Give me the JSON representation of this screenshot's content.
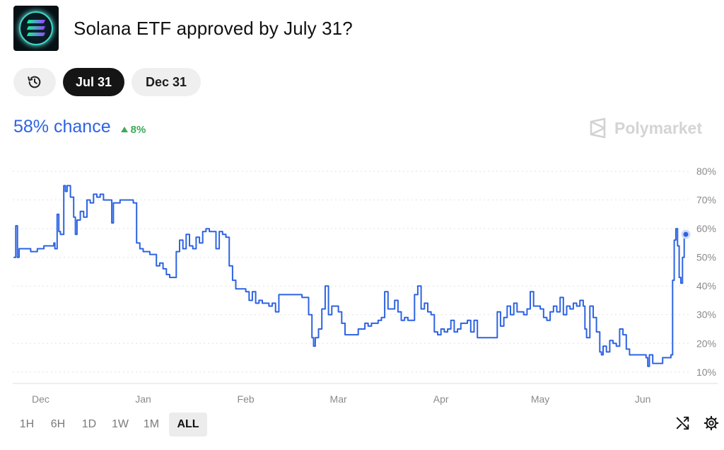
{
  "header": {
    "title": "Solana ETF approved by July 31?"
  },
  "icons": {
    "logo": "solana-logo-icon",
    "history": "history-icon",
    "shuffle": "shuffle-icon",
    "settings": "gear-icon"
  },
  "date_tabs": {
    "first": "Jul 31",
    "second": "Dec 31"
  },
  "summary": {
    "chance": "58% chance",
    "delta": "8%"
  },
  "brand": {
    "name": "Polymarket"
  },
  "colors": {
    "line": "#2d63e2",
    "up": "#3daa5a"
  },
  "ranges": [
    {
      "label": "1H",
      "active": false
    },
    {
      "label": "6H",
      "active": false
    },
    {
      "label": "1D",
      "active": false
    },
    {
      "label": "1W",
      "active": false
    },
    {
      "label": "1M",
      "active": false
    },
    {
      "label": "ALL",
      "active": true
    }
  ],
  "chart_data": {
    "type": "line",
    "x_unit": "days",
    "x_tick_labels": [
      {
        "label": "Dec",
        "x": 0
      },
      {
        "label": "Jan",
        "x": 31
      },
      {
        "label": "Feb",
        "x": 62
      },
      {
        "label": "Mar",
        "x": 90
      },
      {
        "label": "Apr",
        "x": 121
      },
      {
        "label": "May",
        "x": 151
      },
      {
        "label": "Jun",
        "x": 182
      }
    ],
    "y_ticks": [
      "10%",
      "20%",
      "30%",
      "40%",
      "50%",
      "60%",
      "70%",
      "80%"
    ],
    "ylim": [
      6,
      82
    ],
    "xlim": [
      -8,
      195
    ],
    "grid": true,
    "series": [
      {
        "points": [
          [
            -8,
            50
          ],
          [
            -7.5,
            61
          ],
          [
            -7,
            50
          ],
          [
            -6.5,
            53
          ],
          [
            -5,
            53
          ],
          [
            -3,
            52
          ],
          [
            -1,
            53
          ],
          [
            1,
            54
          ],
          [
            3,
            54
          ],
          [
            4,
            55
          ],
          [
            4.3,
            53
          ],
          [
            5,
            65
          ],
          [
            5.5,
            59
          ],
          [
            6,
            58
          ],
          [
            7,
            75
          ],
          [
            7.5,
            73
          ],
          [
            8,
            75
          ],
          [
            9,
            71
          ],
          [
            10,
            64
          ],
          [
            10.5,
            58
          ],
          [
            11,
            63
          ],
          [
            12,
            66
          ],
          [
            13,
            64
          ],
          [
            14,
            70
          ],
          [
            15,
            69
          ],
          [
            16,
            72
          ],
          [
            17,
            71
          ],
          [
            18,
            72
          ],
          [
            19,
            70
          ],
          [
            20,
            70
          ],
          [
            21,
            70
          ],
          [
            21.5,
            62
          ],
          [
            22,
            69
          ],
          [
            23,
            69
          ],
          [
            24,
            70
          ],
          [
            25,
            70
          ],
          [
            26,
            70
          ],
          [
            27,
            70
          ],
          [
            28,
            69
          ],
          [
            29,
            55
          ],
          [
            30,
            53
          ],
          [
            31,
            52
          ],
          [
            32,
            52
          ],
          [
            33,
            51
          ],
          [
            34,
            51
          ],
          [
            35,
            47
          ],
          [
            36,
            48
          ],
          [
            37,
            46
          ],
          [
            38,
            44
          ],
          [
            39,
            43
          ],
          [
            40,
            43
          ],
          [
            41,
            52
          ],
          [
            42,
            56
          ],
          [
            43,
            53
          ],
          [
            44,
            58
          ],
          [
            45,
            54
          ],
          [
            46,
            53
          ],
          [
            47,
            57
          ],
          [
            48,
            55
          ],
          [
            49,
            59
          ],
          [
            50,
            60
          ],
          [
            51,
            59
          ],
          [
            52,
            59
          ],
          [
            53,
            53
          ],
          [
            54,
            59
          ],
          [
            55,
            58
          ],
          [
            56,
            57
          ],
          [
            57,
            47
          ],
          [
            58,
            42
          ],
          [
            59,
            39
          ],
          [
            60,
            39
          ],
          [
            61,
            39
          ],
          [
            62,
            38
          ],
          [
            63,
            35
          ],
          [
            64,
            38
          ],
          [
            65,
            34
          ],
          [
            66,
            35
          ],
          [
            67,
            34
          ],
          [
            68,
            34
          ],
          [
            69,
            33
          ],
          [
            70,
            34
          ],
          [
            71,
            31
          ],
          [
            72,
            37
          ],
          [
            73,
            37
          ],
          [
            74,
            37
          ],
          [
            75,
            37
          ],
          [
            76,
            37
          ],
          [
            77,
            37
          ],
          [
            78,
            37
          ],
          [
            79,
            36
          ],
          [
            80,
            36
          ],
          [
            81,
            30
          ],
          [
            82,
            22
          ],
          [
            82.5,
            19
          ],
          [
            83,
            22
          ],
          [
            84,
            25
          ],
          [
            85,
            32
          ],
          [
            86,
            40
          ],
          [
            87,
            30
          ],
          [
            88,
            33
          ],
          [
            89,
            33
          ],
          [
            90,
            31
          ],
          [
            91,
            27
          ],
          [
            92,
            23
          ],
          [
            93,
            23
          ],
          [
            94,
            23
          ],
          [
            95,
            23
          ],
          [
            96,
            25
          ],
          [
            97,
            25
          ],
          [
            98,
            27
          ],
          [
            99,
            26
          ],
          [
            100,
            27
          ],
          [
            101,
            27
          ],
          [
            102,
            28
          ],
          [
            103,
            29
          ],
          [
            104,
            38
          ],
          [
            105,
            32
          ],
          [
            106,
            32
          ],
          [
            107,
            35
          ],
          [
            108,
            31
          ],
          [
            109,
            28
          ],
          [
            110,
            29
          ],
          [
            111,
            28
          ],
          [
            112,
            28
          ],
          [
            113,
            37
          ],
          [
            114,
            40
          ],
          [
            115,
            32
          ],
          [
            116,
            34
          ],
          [
            117,
            31
          ],
          [
            118,
            30
          ],
          [
            119,
            24
          ],
          [
            120,
            23
          ],
          [
            121,
            25
          ],
          [
            122,
            24
          ],
          [
            123,
            25
          ],
          [
            124,
            28
          ],
          [
            125,
            24
          ],
          [
            126,
            25
          ],
          [
            127,
            27
          ],
          [
            128,
            27
          ],
          [
            129,
            28
          ],
          [
            130,
            24
          ],
          [
            131,
            28
          ],
          [
            132,
            22
          ],
          [
            133,
            22
          ],
          [
            134,
            22
          ],
          [
            135,
            22
          ],
          [
            136,
            22
          ],
          [
            137,
            22
          ],
          [
            138,
            31
          ],
          [
            139,
            26
          ],
          [
            140,
            29
          ],
          [
            141,
            33
          ],
          [
            142,
            30
          ],
          [
            143,
            34
          ],
          [
            144,
            31
          ],
          [
            145,
            31
          ],
          [
            146,
            30
          ],
          [
            147,
            32
          ],
          [
            148,
            38
          ],
          [
            149,
            33
          ],
          [
            150,
            33
          ],
          [
            151,
            32
          ],
          [
            152,
            29
          ],
          [
            153,
            28
          ],
          [
            154,
            31
          ],
          [
            155,
            33
          ],
          [
            156,
            31
          ],
          [
            157,
            36
          ],
          [
            158,
            30
          ],
          [
            159,
            33
          ],
          [
            160,
            32
          ],
          [
            161,
            34
          ],
          [
            162,
            33
          ],
          [
            163,
            35
          ],
          [
            164,
            33
          ],
          [
            164.5,
            25
          ],
          [
            165,
            22
          ],
          [
            166,
            33
          ],
          [
            167,
            29
          ],
          [
            168,
            24
          ],
          [
            169,
            17
          ],
          [
            169.5,
            16
          ],
          [
            170,
            19
          ],
          [
            171,
            17
          ],
          [
            172,
            21
          ],
          [
            173,
            20
          ],
          [
            174,
            19
          ],
          [
            175,
            25
          ],
          [
            176,
            23
          ],
          [
            177,
            18
          ],
          [
            178,
            16
          ],
          [
            179,
            16
          ],
          [
            180,
            16
          ],
          [
            181,
            16
          ],
          [
            182,
            16
          ],
          [
            183,
            15
          ],
          [
            183.5,
            12
          ],
          [
            184,
            16
          ],
          [
            185,
            13
          ],
          [
            186,
            13
          ],
          [
            187,
            13
          ],
          [
            188,
            15
          ],
          [
            189,
            15
          ],
          [
            190,
            15
          ],
          [
            190.5,
            16
          ],
          [
            191,
            42
          ],
          [
            191.5,
            56
          ],
          [
            192,
            60
          ],
          [
            192.5,
            54
          ],
          [
            193,
            43
          ],
          [
            193.5,
            41
          ],
          [
            194,
            50
          ],
          [
            194.5,
            58
          ],
          [
            195,
            58
          ]
        ]
      }
    ]
  }
}
